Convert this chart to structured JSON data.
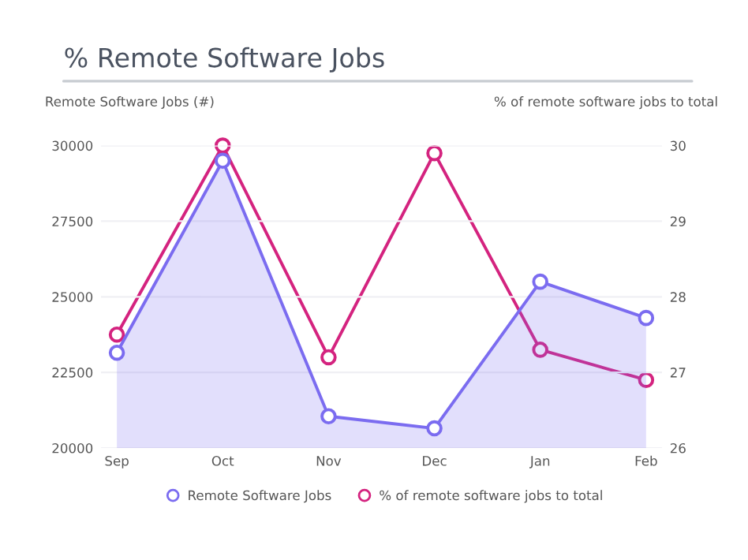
{
  "chart_data": {
    "type": "line",
    "title": "% Remote Software Jobs",
    "ylabel": "Remote Software Jobs (#)",
    "y2label": "% of remote software jobs to total",
    "categories": [
      "Sep",
      "Oct",
      "Nov",
      "Dec",
      "Jan",
      "Feb"
    ],
    "series": [
      {
        "name": "Remote Software Jobs",
        "type": "area",
        "color": "#7b6cf0",
        "values": [
          23150,
          29500,
          21050,
          20650,
          25500,
          24300
        ]
      },
      {
        "name": "% of remote software jobs to total",
        "axis": "y2",
        "color": "#d4237f",
        "values": [
          27.5,
          30.0,
          27.2,
          29.9,
          27.3,
          26.9
        ]
      }
    ],
    "ylim": [
      20000,
      30000
    ],
    "yticks": [
      20000,
      22500,
      25000,
      27500,
      30000
    ],
    "y2lim": [
      26,
      30
    ],
    "y2ticks": [
      26,
      27,
      28,
      29,
      30
    ],
    "grid": "y",
    "legend": "bottom",
    "marker": "circle",
    "line_style": "solid"
  }
}
